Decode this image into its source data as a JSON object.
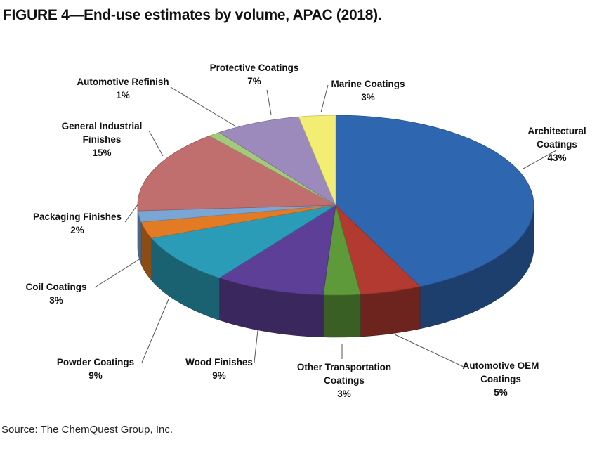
{
  "figure": {
    "title": "FIGURE 4—End-use estimates by volume, APAC (2018).",
    "source": "Source: The ChemQuest Group, Inc."
  },
  "chart_data": {
    "type": "pie",
    "title": "FIGURE 4—End-use estimates by volume, APAC (2018).",
    "style": "3d",
    "slices": [
      {
        "name": "Architectural Coatings",
        "label_lines": [
          "Architectural",
          "Coatings"
        ],
        "value": 43,
        "value_label": "43%",
        "color": "#2f66b0"
      },
      {
        "name": "Automotive OEM Coatings",
        "label_lines": [
          "Automotive OEM",
          "Coatings"
        ],
        "value": 5,
        "value_label": "5%",
        "color": "#b23a30"
      },
      {
        "name": "Other Transportation Coatings",
        "label_lines": [
          "Other Transportation",
          "Coatings"
        ],
        "value": 3,
        "value_label": "3%",
        "color": "#5e9a3a"
      },
      {
        "name": "Wood Finishes",
        "label_lines": [
          "Wood Finishes"
        ],
        "value": 9,
        "value_label": "9%",
        "color": "#5e3f97"
      },
      {
        "name": "Powder Coatings",
        "label_lines": [
          "Powder Coatings"
        ],
        "value": 9,
        "value_label": "9%",
        "color": "#2a9cb8"
      },
      {
        "name": "Coil Coatings",
        "label_lines": [
          "Coil Coatings"
        ],
        "value": 3,
        "value_label": "3%",
        "color": "#e27b24"
      },
      {
        "name": "Packaging Finishes",
        "label_lines": [
          "Packaging Finishes"
        ],
        "value": 2,
        "value_label": "2%",
        "color": "#7aa6d6"
      },
      {
        "name": "General Industrial Finishes",
        "label_lines": [
          "General Industrial",
          "Finishes"
        ],
        "value": 15,
        "value_label": "15%",
        "color": "#c06e6e"
      },
      {
        "name": "Automotive Refinish",
        "label_lines": [
          "Automotive Refinish"
        ],
        "value": 1,
        "value_label": "1%",
        "color": "#a5c97c"
      },
      {
        "name": "Protective Coatings",
        "label_lines": [
          "Protective Coatings"
        ],
        "value": 7,
        "value_label": "7%",
        "color": "#9c8abc"
      },
      {
        "name": "Marine Coatings",
        "label_lines": [
          "Marine Coatings"
        ],
        "value": 3,
        "value_label": "3%",
        "color": "#f3ee73"
      }
    ]
  }
}
